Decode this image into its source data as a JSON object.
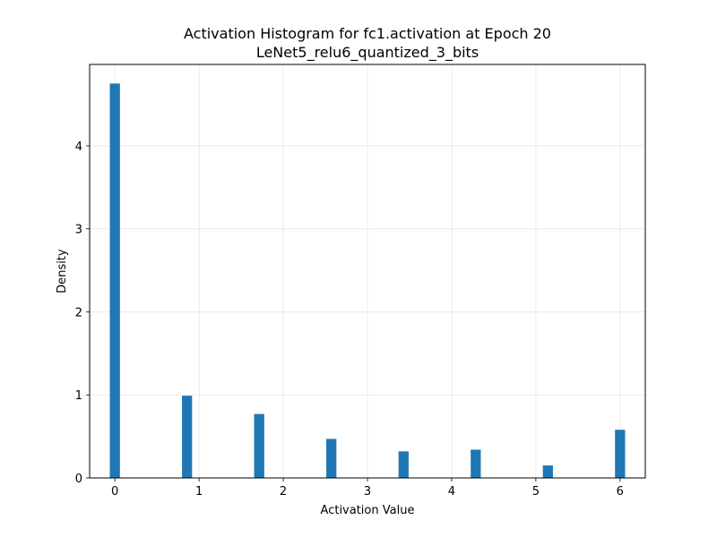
{
  "chart_data": {
    "type": "bar",
    "title": "Activation Histogram for fc1.activation at Epoch 20",
    "subtitle": "LeNet5_relu6_quantized_3_bits",
    "xlabel": "Activation Value",
    "ylabel": "Density",
    "xlim": [
      -0.3,
      6.3
    ],
    "ylim": [
      0,
      4.98
    ],
    "xticks": [
      0,
      1,
      2,
      3,
      4,
      5,
      6
    ],
    "yticks": [
      0,
      1,
      2,
      3,
      4
    ],
    "grid": true,
    "bar_color": "#1f77b4",
    "bin_width": 0.12,
    "bars": [
      {
        "x": 0.0,
        "value": 4.75
      },
      {
        "x": 0.857,
        "value": 0.99
      },
      {
        "x": 1.714,
        "value": 0.77
      },
      {
        "x": 2.571,
        "value": 0.47
      },
      {
        "x": 3.429,
        "value": 0.32
      },
      {
        "x": 4.286,
        "value": 0.34
      },
      {
        "x": 5.143,
        "value": 0.15
      },
      {
        "x": 6.0,
        "value": 0.58
      }
    ]
  }
}
